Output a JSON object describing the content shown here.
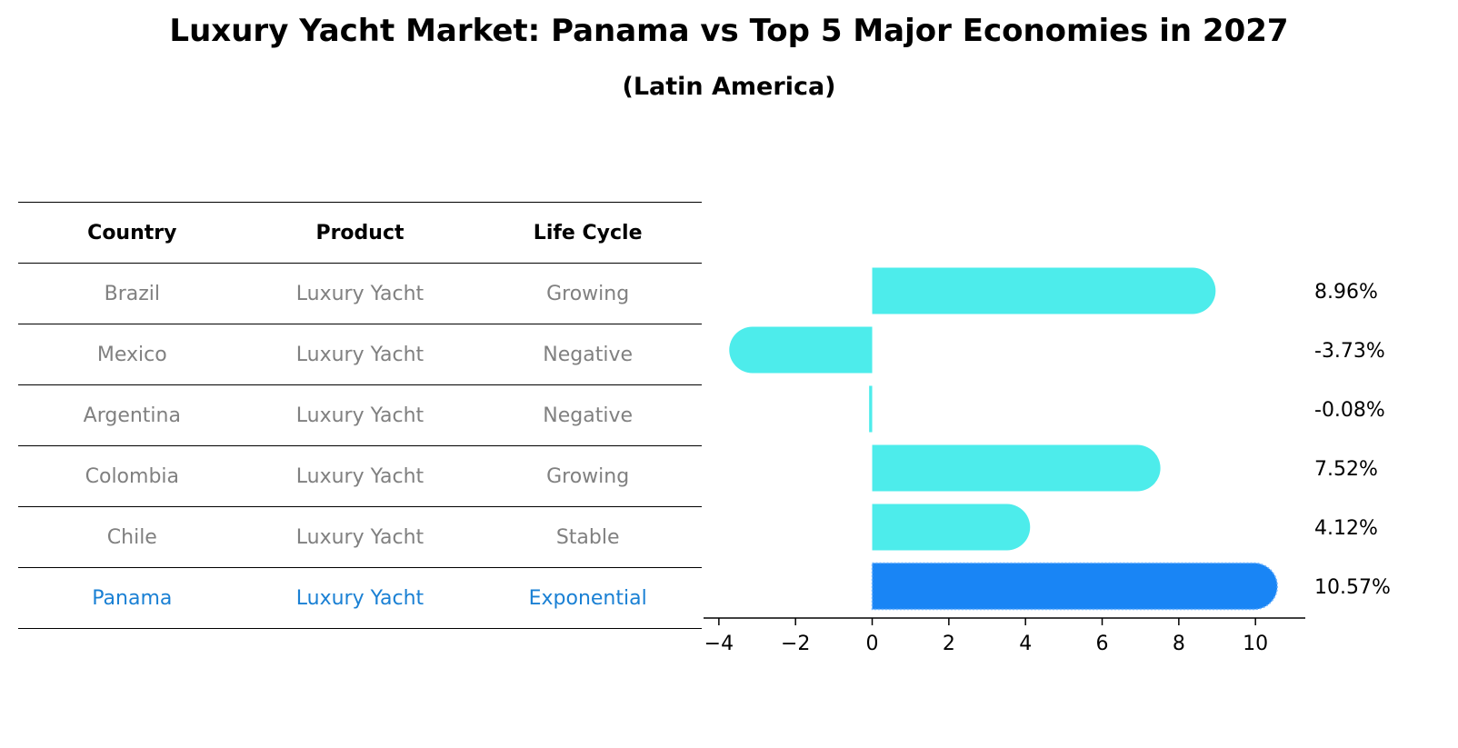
{
  "title": "Luxury Yacht Market: Panama vs Top 5 Major Economies in 2027",
  "subtitle": "(Latin America)",
  "table": {
    "headers": [
      "Country",
      "Product",
      "Life Cycle"
    ],
    "rows": [
      {
        "country": "Brazil",
        "product": "Luxury Yacht",
        "life_cycle": "Growing"
      },
      {
        "country": "Mexico",
        "product": "Luxury Yacht",
        "life_cycle": "Negative"
      },
      {
        "country": "Argentina",
        "product": "Luxury Yacht",
        "life_cycle": "Negative"
      },
      {
        "country": "Colombia",
        "product": "Luxury Yacht",
        "life_cycle": "Growing"
      },
      {
        "country": "Chile",
        "product": "Luxury Yacht",
        "life_cycle": "Stable"
      },
      {
        "country": "Panama",
        "product": "Luxury Yacht",
        "life_cycle": "Exponential"
      }
    ]
  },
  "chart_data": {
    "type": "bar",
    "orientation": "horizontal",
    "categories": [
      "Brazil",
      "Mexico",
      "Argentina",
      "Colombia",
      "Chile",
      "Panama"
    ],
    "values": [
      8.96,
      -3.73,
      -0.08,
      7.52,
      4.12,
      10.57
    ],
    "value_labels": [
      "8.96%",
      "-3.73%",
      "-0.08%",
      "7.52%",
      "4.12%",
      "10.57%"
    ],
    "highlight_index": 5,
    "xlim": [
      -4.4,
      11.3
    ],
    "xticks": [
      -4,
      -2,
      0,
      2,
      4,
      6,
      8,
      10
    ],
    "xtick_labels": [
      "−4",
      "−2",
      "0",
      "2",
      "4",
      "6",
      "8",
      "10"
    ],
    "grid": false,
    "colors": {
      "bar": "#4deceb",
      "highlight_bar": "#1985f5",
      "highlight_table_text": "#1a80d4",
      "table_text": "#808080"
    }
  }
}
